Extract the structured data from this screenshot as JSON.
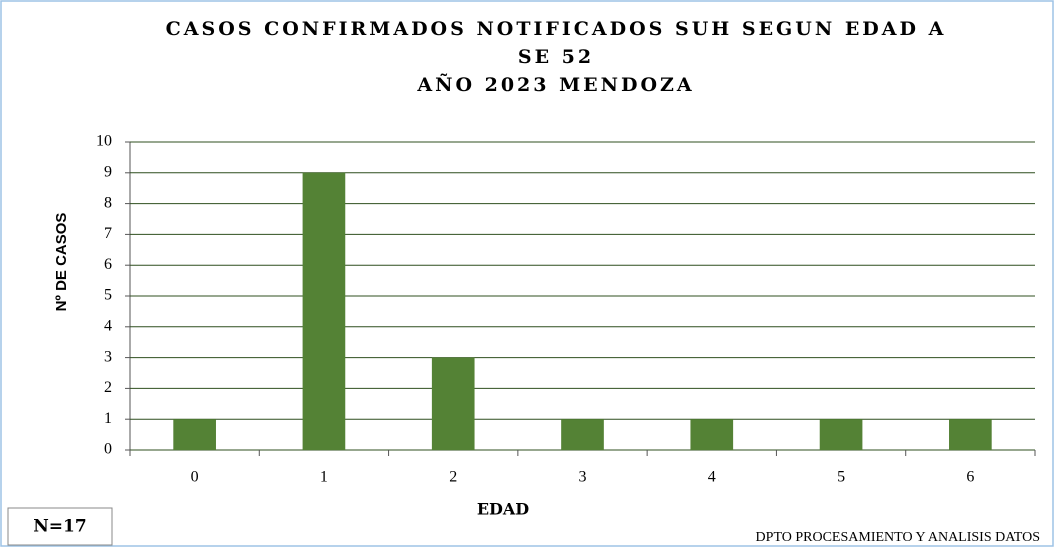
{
  "chart_data": {
    "type": "bar",
    "title": [
      "CASOS CONFIRMADOS NOTIFICADOS SUH SEGUN EDAD A",
      "SE 52",
      "AÑO 2023 MENDOZA"
    ],
    "x_label": "EDAD",
    "y_label": "Nº DE CASOS",
    "categories": [
      "0",
      "1",
      "2",
      "3",
      "4",
      "5",
      "6"
    ],
    "values": [
      1,
      9,
      3,
      1,
      1,
      1,
      1
    ],
    "color": "#548235",
    "ylim": [
      0,
      10
    ],
    "yticks": [
      0,
      1,
      2,
      3,
      4,
      5,
      6,
      7,
      8,
      9,
      10
    ],
    "grid": true,
    "annotations": [
      "N=17",
      "DPTO PROCESAMIENTO Y ANALISIS DATOS"
    ]
  }
}
